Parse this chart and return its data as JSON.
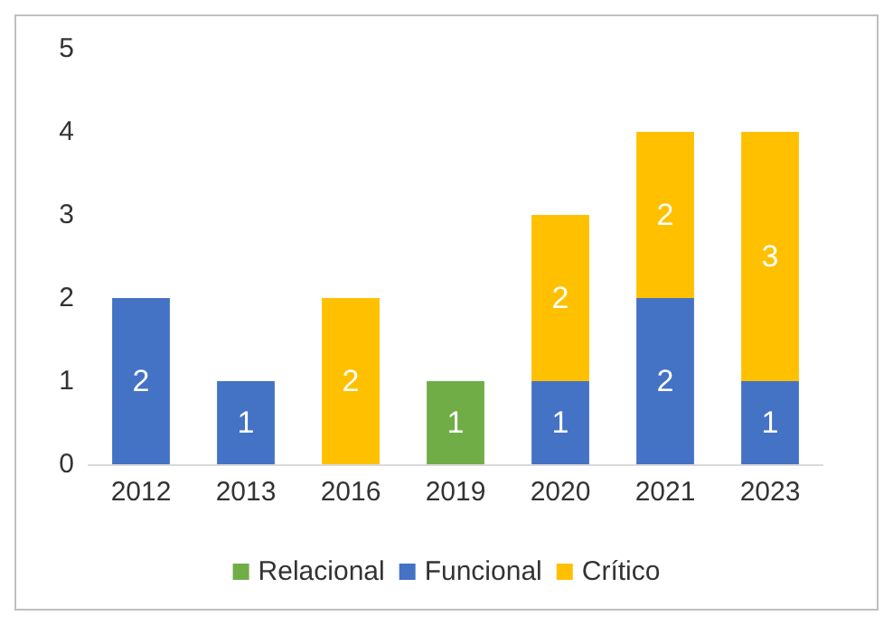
{
  "chart_data": {
    "type": "bar",
    "stacked": true,
    "categories": [
      "2012",
      "2013",
      "2016",
      "2019",
      "2020",
      "2021",
      "2023"
    ],
    "series": [
      {
        "name": "Relacional",
        "color": "#70ad47",
        "values": [
          null,
          null,
          null,
          1,
          null,
          null,
          null
        ]
      },
      {
        "name": "Funcional",
        "color": "#4472c4",
        "values": [
          2,
          1,
          null,
          null,
          1,
          2,
          1
        ]
      },
      {
        "name": "Crítico",
        "color": "#ffc000",
        "values": [
          null,
          null,
          2,
          null,
          2,
          2,
          3
        ]
      }
    ],
    "ylim": [
      0,
      5
    ],
    "yticks": [
      0,
      1,
      2,
      3,
      4,
      5
    ],
    "grid": false,
    "legend": "bottom",
    "data_labels": true
  }
}
